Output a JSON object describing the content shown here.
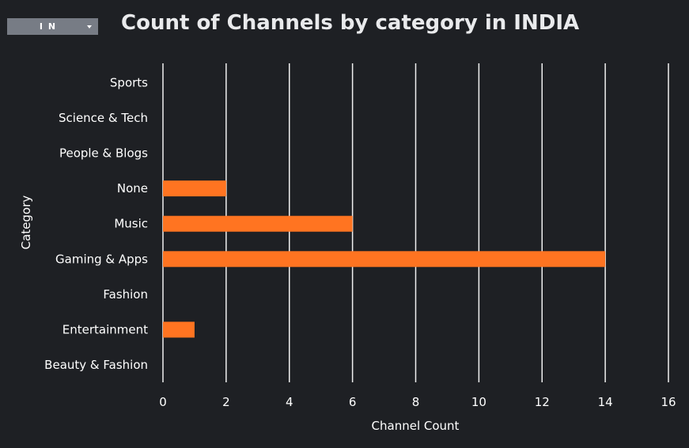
{
  "filter": {
    "selected": "IN"
  },
  "chart_data": {
    "type": "bar",
    "orientation": "horizontal",
    "title": "Count of Channels by category in INDIA",
    "xlabel": "Channel Count",
    "ylabel": "Category",
    "categories": [
      "Sports",
      "Science & Tech",
      "People & Blogs",
      "None",
      "Music",
      "Gaming & Apps",
      "Fashion",
      "Entertainment",
      "Beauty & Fashion"
    ],
    "values": [
      0,
      0,
      0,
      2,
      6,
      14,
      0,
      1,
      0
    ],
    "xlim": [
      0,
      16
    ],
    "xticks": [
      0,
      2,
      4,
      6,
      8,
      10,
      12,
      14,
      16
    ],
    "grid": "vertical",
    "legend": "none",
    "bar_color": "#ff7421",
    "grid_color": "#f0f0f0",
    "background": "#1e2024"
  }
}
